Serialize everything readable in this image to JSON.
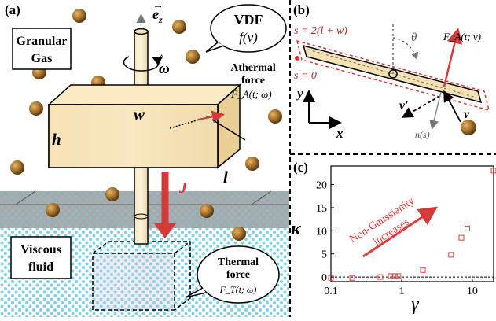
{
  "panel_a": {
    "label": "(a)",
    "granular_gas": "Granular",
    "granular_gas_2": "Gas",
    "axis_ez": "e",
    "axis_ez_sub": "z",
    "omega": "ω",
    "vdf_title": "VDF",
    "vdf_formula": "f(v)",
    "athermal_1": "Athermal",
    "athermal_2": "force",
    "athermal_formula": "F_A(t; ω)",
    "dim_w": "w",
    "dim_h": "h",
    "dim_l": "l",
    "flux": "J",
    "viscous_1": "Viscous",
    "viscous_2": "fluid",
    "thermal_1": "Thermal",
    "thermal_2": "force",
    "thermal_formula": "F_T(t; ω)"
  },
  "panel_b": {
    "label": "(b)",
    "s_top": "s = 2(l + w)",
    "s_zero": "s = 0",
    "theta": "θ",
    "fa_label": "F_A(t; v)",
    "v_prime": "v′",
    "v": "v",
    "n_s": "n(s)",
    "axis_y": "y",
    "axis_x": "x"
  },
  "panel_c": {
    "label": "(c)",
    "ylabel": "κ",
    "xlabel": "γ",
    "annotation_1": "Non-Gaussianity",
    "annotation_2": "increases"
  },
  "chart_data": {
    "type": "scatter",
    "xscale": "log",
    "xlim": [
      0.1,
      20
    ],
    "ylim": [
      -1,
      24
    ],
    "xticks": [
      "0.1",
      "1",
      "10"
    ],
    "yticks": [
      "0",
      "5",
      "10",
      "15",
      "20"
    ],
    "xlabel": "γ",
    "ylabel": "κ",
    "reference_line_y": 0,
    "marker": "open-square",
    "color": "#e03c3c",
    "points": [
      {
        "x": 0.1,
        "y": -0.2
      },
      {
        "x": 0.2,
        "y": -0.2
      },
      {
        "x": 0.5,
        "y": 0.0
      },
      {
        "x": 0.7,
        "y": 0.2
      },
      {
        "x": 0.8,
        "y": 0.2
      },
      {
        "x": 0.9,
        "y": 0.2
      },
      {
        "x": 2.0,
        "y": 1.5
      },
      {
        "x": 5.0,
        "y": 4.8
      },
      {
        "x": 7.0,
        "y": 8.5
      },
      {
        "x": 8.5,
        "y": 10.5
      },
      {
        "x": 20.0,
        "y": 23.0
      }
    ]
  }
}
